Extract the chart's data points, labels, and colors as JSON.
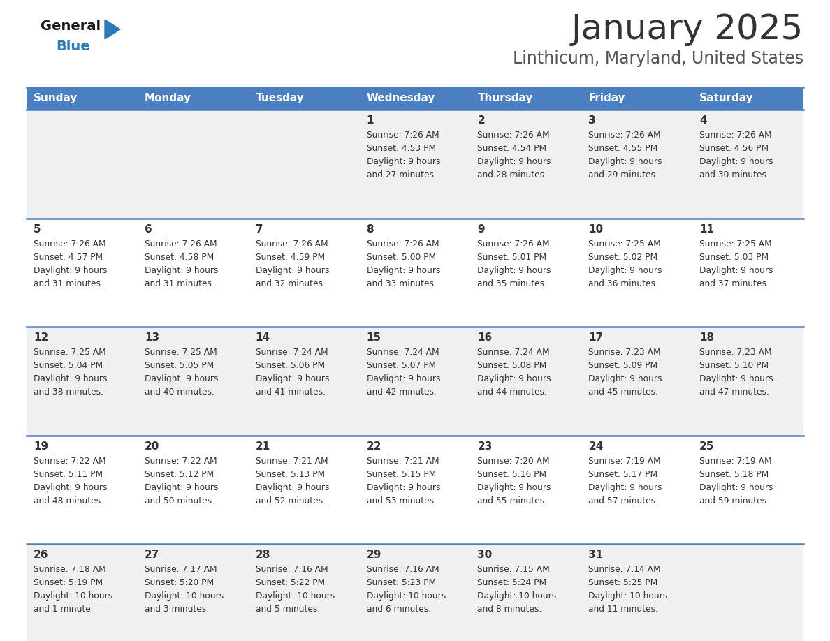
{
  "title": "January 2025",
  "subtitle": "Linthicum, Maryland, United States",
  "days_of_week": [
    "Sunday",
    "Monday",
    "Tuesday",
    "Wednesday",
    "Thursday",
    "Friday",
    "Saturday"
  ],
  "header_bg": "#4a7fc1",
  "header_text_color": "#FFFFFF",
  "row_bg_odd": "#f0f0f0",
  "row_bg_even": "#FFFFFF",
  "cell_text_color": "#333333",
  "separator_color": "#4a7fc1",
  "logo_general_color": "#1a1a1a",
  "logo_blue_color": "#2B7BB9",
  "title_color": "#333333",
  "subtitle_color": "#555555",
  "calendar_data": [
    [
      {
        "day": "",
        "sunrise": "",
        "sunset": "",
        "daylight": ""
      },
      {
        "day": "",
        "sunrise": "",
        "sunset": "",
        "daylight": ""
      },
      {
        "day": "",
        "sunrise": "",
        "sunset": "",
        "daylight": ""
      },
      {
        "day": "1",
        "sunrise": "7:26 AM",
        "sunset": "4:53 PM",
        "daylight": "9 hours and 27 minutes."
      },
      {
        "day": "2",
        "sunrise": "7:26 AM",
        "sunset": "4:54 PM",
        "daylight": "9 hours and 28 minutes."
      },
      {
        "day": "3",
        "sunrise": "7:26 AM",
        "sunset": "4:55 PM",
        "daylight": "9 hours and 29 minutes."
      },
      {
        "day": "4",
        "sunrise": "7:26 AM",
        "sunset": "4:56 PM",
        "daylight": "9 hours and 30 minutes."
      }
    ],
    [
      {
        "day": "5",
        "sunrise": "7:26 AM",
        "sunset": "4:57 PM",
        "daylight": "9 hours and 31 minutes."
      },
      {
        "day": "6",
        "sunrise": "7:26 AM",
        "sunset": "4:58 PM",
        "daylight": "9 hours and 31 minutes."
      },
      {
        "day": "7",
        "sunrise": "7:26 AM",
        "sunset": "4:59 PM",
        "daylight": "9 hours and 32 minutes."
      },
      {
        "day": "8",
        "sunrise": "7:26 AM",
        "sunset": "5:00 PM",
        "daylight": "9 hours and 33 minutes."
      },
      {
        "day": "9",
        "sunrise": "7:26 AM",
        "sunset": "5:01 PM",
        "daylight": "9 hours and 35 minutes."
      },
      {
        "day": "10",
        "sunrise": "7:25 AM",
        "sunset": "5:02 PM",
        "daylight": "9 hours and 36 minutes."
      },
      {
        "day": "11",
        "sunrise": "7:25 AM",
        "sunset": "5:03 PM",
        "daylight": "9 hours and 37 minutes."
      }
    ],
    [
      {
        "day": "12",
        "sunrise": "7:25 AM",
        "sunset": "5:04 PM",
        "daylight": "9 hours and 38 minutes."
      },
      {
        "day": "13",
        "sunrise": "7:25 AM",
        "sunset": "5:05 PM",
        "daylight": "9 hours and 40 minutes."
      },
      {
        "day": "14",
        "sunrise": "7:24 AM",
        "sunset": "5:06 PM",
        "daylight": "9 hours and 41 minutes."
      },
      {
        "day": "15",
        "sunrise": "7:24 AM",
        "sunset": "5:07 PM",
        "daylight": "9 hours and 42 minutes."
      },
      {
        "day": "16",
        "sunrise": "7:24 AM",
        "sunset": "5:08 PM",
        "daylight": "9 hours and 44 minutes."
      },
      {
        "day": "17",
        "sunrise": "7:23 AM",
        "sunset": "5:09 PM",
        "daylight": "9 hours and 45 minutes."
      },
      {
        "day": "18",
        "sunrise": "7:23 AM",
        "sunset": "5:10 PM",
        "daylight": "9 hours and 47 minutes."
      }
    ],
    [
      {
        "day": "19",
        "sunrise": "7:22 AM",
        "sunset": "5:11 PM",
        "daylight": "9 hours and 48 minutes."
      },
      {
        "day": "20",
        "sunrise": "7:22 AM",
        "sunset": "5:12 PM",
        "daylight": "9 hours and 50 minutes."
      },
      {
        "day": "21",
        "sunrise": "7:21 AM",
        "sunset": "5:13 PM",
        "daylight": "9 hours and 52 minutes."
      },
      {
        "day": "22",
        "sunrise": "7:21 AM",
        "sunset": "5:15 PM",
        "daylight": "9 hours and 53 minutes."
      },
      {
        "day": "23",
        "sunrise": "7:20 AM",
        "sunset": "5:16 PM",
        "daylight": "9 hours and 55 minutes."
      },
      {
        "day": "24",
        "sunrise": "7:19 AM",
        "sunset": "5:17 PM",
        "daylight": "9 hours and 57 minutes."
      },
      {
        "day": "25",
        "sunrise": "7:19 AM",
        "sunset": "5:18 PM",
        "daylight": "9 hours and 59 minutes."
      }
    ],
    [
      {
        "day": "26",
        "sunrise": "7:18 AM",
        "sunset": "5:19 PM",
        "daylight": "10 hours and 1 minute."
      },
      {
        "day": "27",
        "sunrise": "7:17 AM",
        "sunset": "5:20 PM",
        "daylight": "10 hours and 3 minutes."
      },
      {
        "day": "28",
        "sunrise": "7:16 AM",
        "sunset": "5:22 PM",
        "daylight": "10 hours and 5 minutes."
      },
      {
        "day": "29",
        "sunrise": "7:16 AM",
        "sunset": "5:23 PM",
        "daylight": "10 hours and 6 minutes."
      },
      {
        "day": "30",
        "sunrise": "7:15 AM",
        "sunset": "5:24 PM",
        "daylight": "10 hours and 8 minutes."
      },
      {
        "day": "31",
        "sunrise": "7:14 AM",
        "sunset": "5:25 PM",
        "daylight": "10 hours and 11 minutes."
      },
      {
        "day": "",
        "sunrise": "",
        "sunset": "",
        "daylight": ""
      }
    ]
  ]
}
